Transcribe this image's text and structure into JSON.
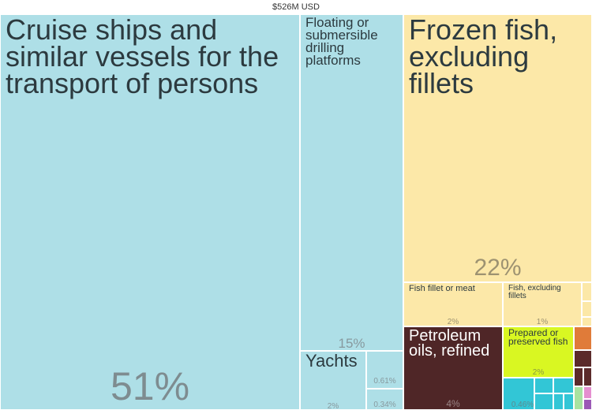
{
  "total_label": "$526M USD",
  "chart_data": {
    "type": "treemap",
    "total": "$526M USD",
    "items": [
      {
        "label": "Cruise ships and similar vessels for the transport of persons",
        "percent_label": "51%",
        "percent": 51,
        "color": "#aedfe7"
      },
      {
        "label": "Floating or submersible drilling platforms",
        "percent_label": "15%",
        "percent": 15,
        "color": "#aedfe7"
      },
      {
        "label": "Yachts",
        "percent_label": "2%",
        "percent": 2,
        "color": "#aedfe7"
      },
      {
        "label": "",
        "percent_label": "0.61%",
        "percent": 0.61,
        "color": "#aedfe7"
      },
      {
        "label": "",
        "percent_label": "0.34%",
        "percent": 0.34,
        "color": "#aedfe7"
      },
      {
        "label": "Frozen fish, excluding fillets",
        "percent_label": "22%",
        "percent": 22,
        "color": "#fce8a8"
      },
      {
        "label": "Fish fillet or meat",
        "percent_label": "2%",
        "percent": 2,
        "color": "#fce8a8"
      },
      {
        "label": "Fish, excluding fillets",
        "percent_label": "1%",
        "percent": 1,
        "color": "#fce8a8"
      },
      {
        "label": "Petroleum oils, refined",
        "percent_label": "4%",
        "percent": 4,
        "color": "#4f2627"
      },
      {
        "label": "Prepared or preserved fish",
        "percent_label": "2%",
        "percent": 2,
        "color": "#d9f722"
      },
      {
        "label": "",
        "percent_label": "0.46%",
        "percent": 0.46,
        "color": "#32c6d6"
      }
    ]
  }
}
